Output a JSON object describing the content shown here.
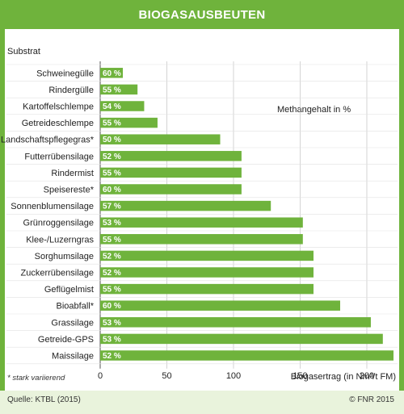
{
  "header": {
    "title": "BIOGASAUSBEUTEN"
  },
  "chart_data": {
    "type": "bar",
    "orientation": "horizontal",
    "ylabel": "Substrat",
    "subtitle": "Methangehalt in %",
    "xlabel": "Biogasertrag (in Nm³/t FM)",
    "xlim": [
      0,
      200
    ],
    "xticks": [
      0,
      50,
      100,
      150,
      200
    ],
    "categories": [
      "Schweinegülle",
      "Rindergülle",
      "Kartoffelschlempe",
      "Getreideschlempe",
      "Landschaftspflegegras*",
      "Futterrübensilage",
      "Rindermist",
      "Speisereste*",
      "Sonnenblumensilage",
      "Grünroggensilage",
      "Klee-/Luzerngras",
      "Sorghumsilage",
      "Zuckerrübensilage",
      "Geflügelmist",
      "Bioabfall*",
      "Grassilage",
      "Getreide-GPS",
      "Maissilage"
    ],
    "values": [
      17,
      28,
      33,
      43,
      90,
      106,
      106,
      106,
      128,
      152,
      152,
      160,
      160,
      160,
      180,
      203,
      212,
      220
    ],
    "bar_labels": [
      "60 %",
      "55 %",
      "54 %",
      "55 %",
      "50 %",
      "52 %",
      "55 %",
      "60 %",
      "57 %",
      "53 %",
      "55 %",
      "52 %",
      "52 %",
      "55 %",
      "60 %",
      "53 %",
      "53 %",
      "52 %"
    ],
    "grid": "vertical",
    "bar_color": "#6fb33c",
    "grid_color": "#c9c9c9"
  },
  "footnote": "* stark variierend",
  "source": "Quelle: KTBL (2015)",
  "copyright": "© FNR 2015"
}
